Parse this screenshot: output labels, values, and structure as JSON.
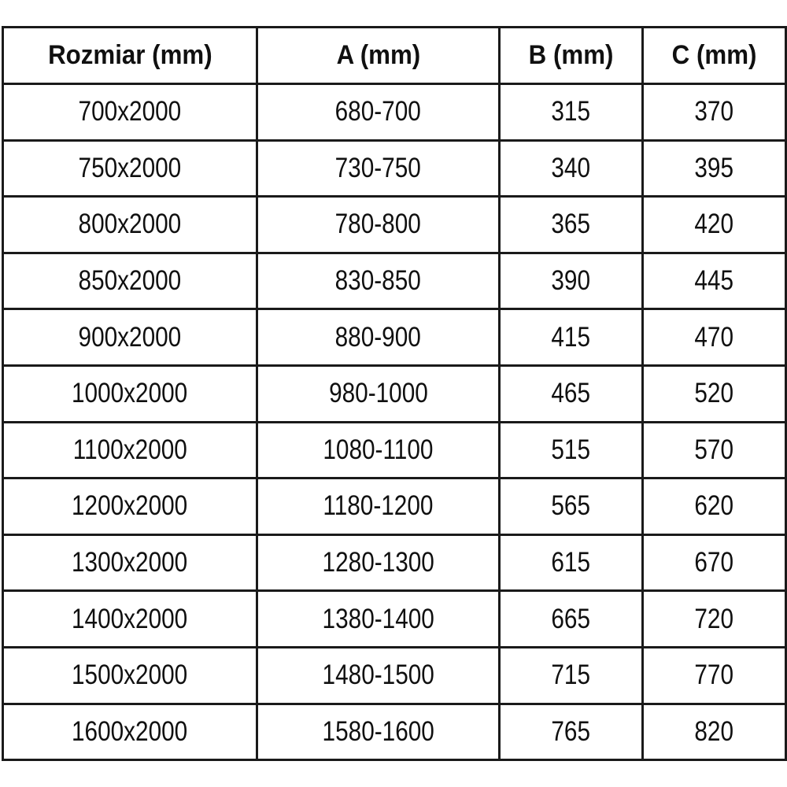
{
  "theme": {
    "border-color": "#1a1a1a",
    "text-color": "#101010",
    "bg-color": "#ffffff"
  },
  "table": {
    "columns": [
      "Rozmiar (mm)",
      "A (mm)",
      "B (mm)",
      "C (mm)"
    ],
    "rows": [
      [
        "700x2000",
        "680-700",
        "315",
        "370"
      ],
      [
        "750x2000",
        "730-750",
        "340",
        "395"
      ],
      [
        "800x2000",
        "780-800",
        "365",
        "420"
      ],
      [
        "850x2000",
        "830-850",
        "390",
        "445"
      ],
      [
        "900x2000",
        "880-900",
        "415",
        "470"
      ],
      [
        "1000x2000",
        "980-1000",
        "465",
        "520"
      ],
      [
        "1100x2000",
        "1080-1100",
        "515",
        "570"
      ],
      [
        "1200x2000",
        "1180-1200",
        "565",
        "620"
      ],
      [
        "1300x2000",
        "1280-1300",
        "615",
        "670"
      ],
      [
        "1400x2000",
        "1380-1400",
        "665",
        "720"
      ],
      [
        "1500x2000",
        "1480-1500",
        "715",
        "770"
      ],
      [
        "1600x2000",
        "1580-1600",
        "765",
        "820"
      ]
    ]
  }
}
